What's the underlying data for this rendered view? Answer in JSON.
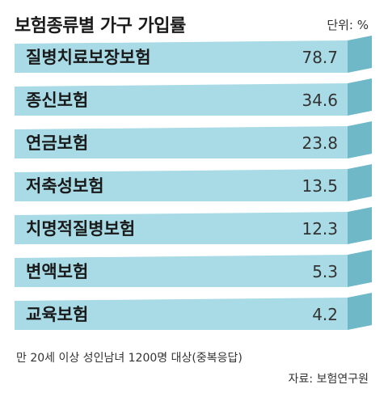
{
  "header": {
    "title": "보험종류별 가구 가입률",
    "unit": "단위: %"
  },
  "footer": {
    "note": "만 20세 이상 성인남녀 1200명 대상(중복응답)",
    "source": "자료: 보험연구원"
  },
  "colors": {
    "bar": "#a9dbe6",
    "bar_dark": "#6fb8c8",
    "gap": "#ffffff"
  },
  "chart_data": {
    "type": "bar",
    "orientation": "horizontal",
    "title": "보험종류별 가구 가입률",
    "unit": "%",
    "categories": [
      "질병치료보장보험",
      "종신보험",
      "연금보험",
      "저축성보험",
      "치명적질병보험",
      "변액보험",
      "교육보험"
    ],
    "values": [
      78.7,
      34.6,
      23.8,
      13.5,
      12.3,
      5.3,
      4.2
    ],
    "value_labels": [
      "78.7",
      "34.6",
      "23.8",
      "13.5",
      "12.3",
      "5.3",
      "4.2"
    ]
  }
}
